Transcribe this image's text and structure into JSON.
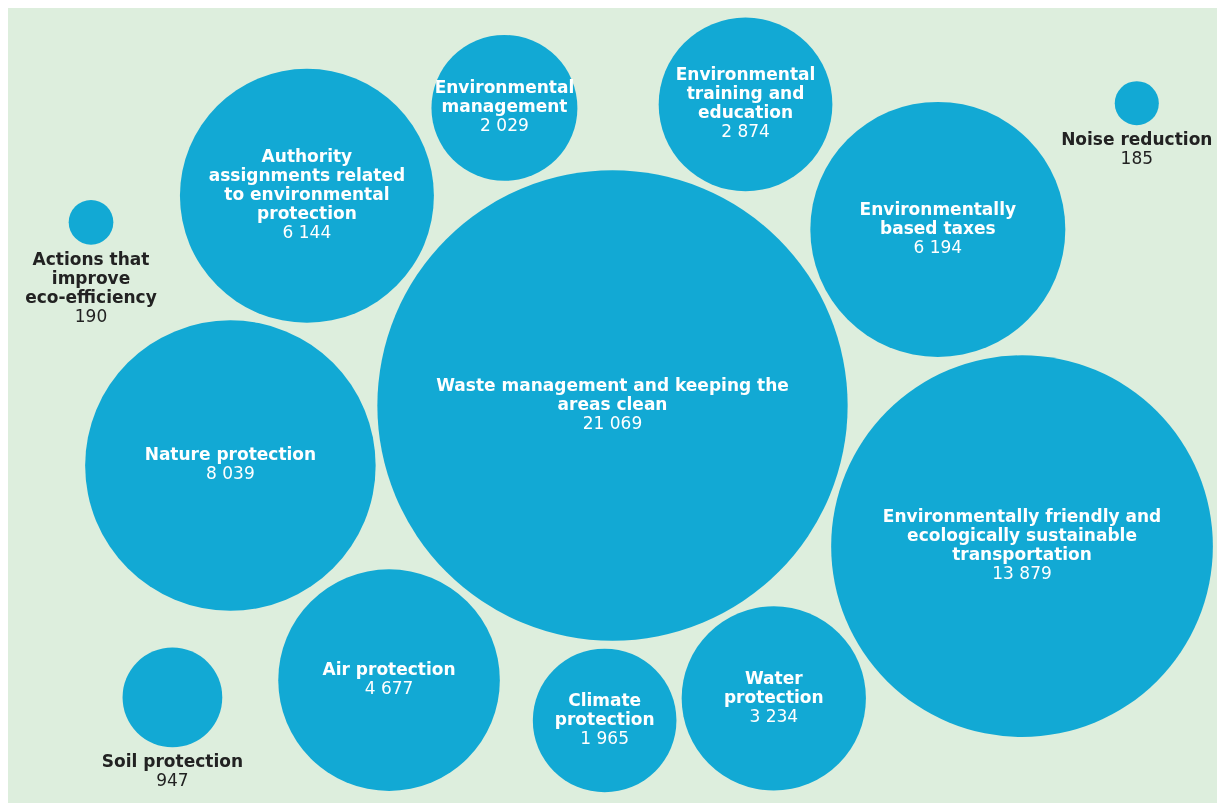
{
  "chart_data": {
    "type": "other",
    "categories": [
      "Actions that improve eco-efficiency",
      "Noise reduction",
      "Waste management and keeping the areas clean",
      "Nature protection",
      "Water protection",
      "Authority assignments related to environmental protection",
      "Soil protection",
      "Environmentally friendly and ecologically sustainable transportation",
      "Climate protection",
      "Air protection",
      "Environmentally based taxes",
      "Environmental management",
      "Environmental training and education"
    ],
    "values": [
      190,
      185,
      21069,
      8039,
      3234,
      6144,
      947,
      13879,
      1965,
      4677,
      6194,
      2029,
      2874
    ],
    "color": "#12a9d4",
    "data_labels": true
  }
}
